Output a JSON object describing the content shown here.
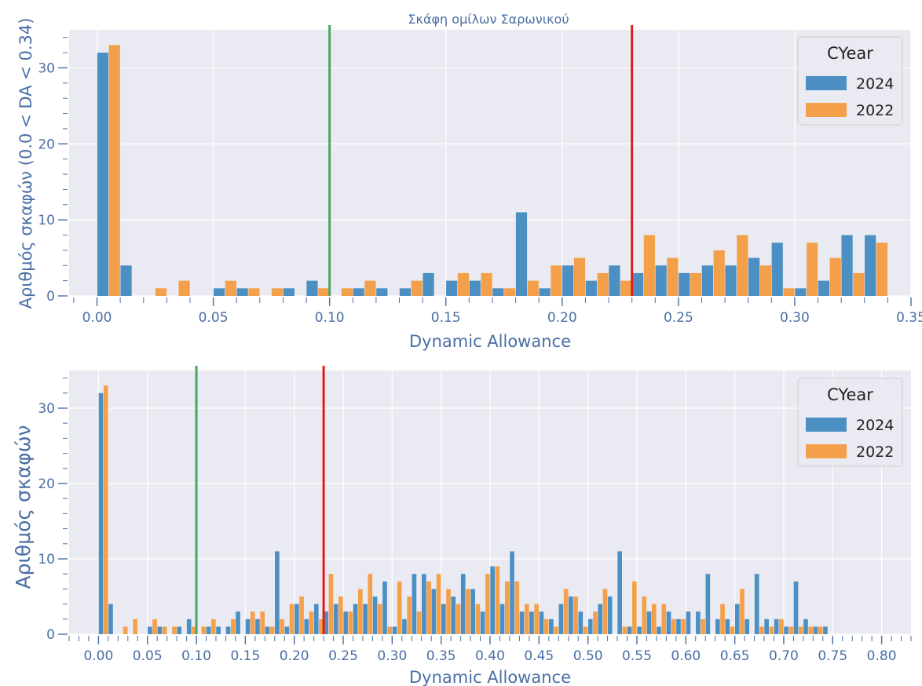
{
  "chart_data": [
    {
      "type": "bar",
      "title": "Σκάφη ομίλων Σαρωνικού",
      "xlabel": "Dynamic Allowance",
      "ylabel": "Αριθμός σκαφών (0.0 < DA < 0.34)",
      "xlim": [
        -0.012,
        0.35
      ],
      "ylim": [
        0,
        35
      ],
      "bin_width": 0.01,
      "x_ticks": [
        "0.00",
        "0.05",
        "0.10",
        "0.15",
        "0.20",
        "0.25",
        "0.30",
        "0.35"
      ],
      "y_ticks": [
        "0",
        "10",
        "20",
        "30"
      ],
      "vlines": [
        {
          "x": 0.1,
          "color": "#4aa564"
        },
        {
          "x": 0.23,
          "color": "#e31a1c"
        }
      ],
      "legend": {
        "title": "CYear",
        "position": "top-right"
      },
      "bin_starts": [
        0.0,
        0.01,
        0.02,
        0.03,
        0.04,
        0.05,
        0.06,
        0.07,
        0.08,
        0.09,
        0.1,
        0.11,
        0.12,
        0.13,
        0.14,
        0.15,
        0.16,
        0.17,
        0.18,
        0.19,
        0.2,
        0.21,
        0.22,
        0.23,
        0.24,
        0.25,
        0.26,
        0.27,
        0.28,
        0.29,
        0.3,
        0.31,
        0.32,
        0.33
      ],
      "series": [
        {
          "name": "2024",
          "color": "#4c8fc3",
          "values": [
            32,
            4,
            0,
            0,
            0,
            1,
            1,
            0,
            1,
            2,
            0,
            1,
            1,
            1,
            3,
            2,
            2,
            1,
            11,
            1,
            4,
            2,
            4,
            3,
            4,
            3,
            4,
            4,
            5,
            7,
            1,
            2,
            8,
            8
          ]
        },
        {
          "name": "2022",
          "color": "#f4a04a",
          "values": [
            33,
            0,
            1,
            2,
            0,
            2,
            1,
            1,
            0,
            1,
            1,
            2,
            0,
            2,
            0,
            3,
            3,
            1,
            2,
            4,
            5,
            3,
            2,
            8,
            5,
            3,
            6,
            8,
            4,
            1,
            7,
            5,
            3,
            7
          ]
        }
      ]
    },
    {
      "type": "bar",
      "title": "",
      "xlabel": "Dynamic Allowance",
      "ylabel": "Αριθμός σκαφών",
      "xlim": [
        -0.03,
        0.83
      ],
      "ylim": [
        0,
        35
      ],
      "bin_width": 0.01,
      "x_ticks": [
        "0.00",
        "0.05",
        "0.10",
        "0.15",
        "0.20",
        "0.25",
        "0.30",
        "0.35",
        "0.40",
        "0.45",
        "0.50",
        "0.55",
        "0.60",
        "0.65",
        "0.70",
        "0.75",
        "0.80"
      ],
      "y_ticks": [
        "0",
        "10",
        "20",
        "30"
      ],
      "vlines": [
        {
          "x": 0.1,
          "color": "#4aa564"
        },
        {
          "x": 0.23,
          "color": "#e31a1c"
        }
      ],
      "legend": {
        "title": "CYear",
        "position": "top-right"
      },
      "bin_starts": [
        0.0,
        0.01,
        0.02,
        0.03,
        0.04,
        0.05,
        0.06,
        0.07,
        0.08,
        0.09,
        0.1,
        0.11,
        0.12,
        0.13,
        0.14,
        0.15,
        0.16,
        0.17,
        0.18,
        0.19,
        0.2,
        0.21,
        0.22,
        0.23,
        0.24,
        0.25,
        0.26,
        0.27,
        0.28,
        0.29,
        0.3,
        0.31,
        0.32,
        0.33,
        0.34,
        0.35,
        0.36,
        0.37,
        0.38,
        0.39,
        0.4,
        0.41,
        0.42,
        0.43,
        0.44,
        0.45,
        0.46,
        0.47,
        0.48,
        0.49,
        0.5,
        0.51,
        0.52,
        0.53,
        0.54,
        0.55,
        0.56,
        0.57,
        0.58,
        0.59,
        0.6,
        0.61,
        0.62,
        0.63,
        0.64,
        0.65,
        0.66,
        0.67,
        0.68,
        0.69,
        0.7,
        0.71,
        0.72,
        0.73,
        0.74
      ],
      "series": [
        {
          "name": "2024",
          "color": "#4c8fc3",
          "values": [
            32,
            4,
            0,
            0,
            0,
            1,
            1,
            0,
            1,
            2,
            0,
            1,
            1,
            1,
            3,
            2,
            2,
            1,
            11,
            1,
            4,
            2,
            4,
            3,
            4,
            3,
            4,
            4,
            5,
            7,
            1,
            2,
            8,
            8,
            6,
            4,
            5,
            8,
            6,
            3,
            9,
            4,
            11,
            3,
            3,
            3,
            2,
            4,
            5,
            3,
            2,
            4,
            5,
            11,
            1,
            1,
            3,
            1,
            3,
            2,
            3,
            3,
            8,
            2,
            2,
            4,
            2,
            8,
            2,
            2,
            1,
            7,
            2,
            1,
            1
          ]
        },
        {
          "name": "2022",
          "color": "#f4a04a",
          "values": [
            33,
            0,
            1,
            2,
            0,
            2,
            1,
            1,
            0,
            1,
            1,
            2,
            0,
            2,
            0,
            3,
            3,
            1,
            2,
            4,
            5,
            3,
            2,
            8,
            5,
            3,
            6,
            8,
            4,
            1,
            7,
            5,
            3,
            7,
            8,
            6,
            4,
            6,
            4,
            8,
            9,
            7,
            7,
            4,
            4,
            2,
            1,
            6,
            5,
            1,
            3,
            6,
            0,
            1,
            7,
            5,
            4,
            4,
            2,
            2,
            0,
            2,
            0,
            4,
            1,
            6,
            0,
            1,
            1,
            2,
            1,
            1,
            1,
            1,
            0
          ]
        }
      ]
    }
  ]
}
